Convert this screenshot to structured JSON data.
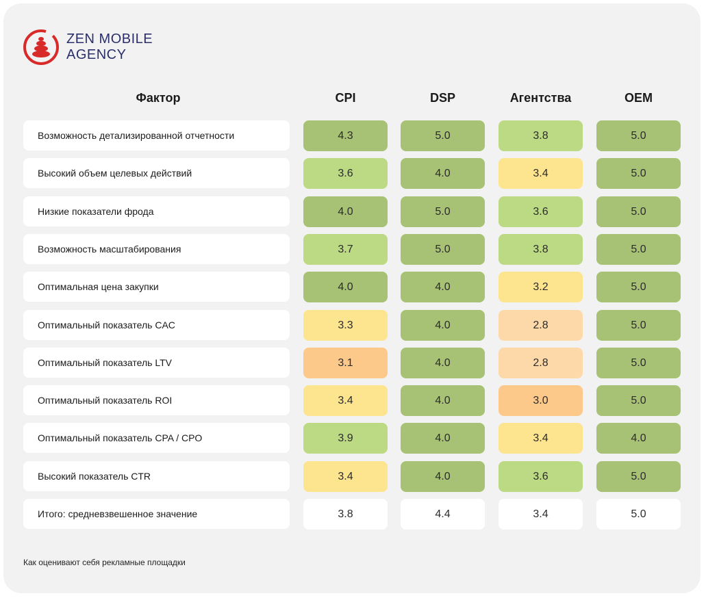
{
  "logo": {
    "line1": "ZEN MOBILE",
    "line2": "AGENCY",
    "colors": {
      "mark": "#d92a2a",
      "text": "#2a2f6b"
    }
  },
  "header": {
    "factor": "Фактор",
    "columns": [
      "CPI",
      "DSP",
      "Агентства",
      "OEM"
    ]
  },
  "colors": {
    "dark_green": "#a7c274",
    "light_green": "#bcd984",
    "yellow": "#fde48f",
    "light_orange": "#fdd8a8",
    "orange": "#fcc98b",
    "white": "#ffffff"
  },
  "chart_data": {
    "type": "table",
    "columns": [
      "CPI",
      "DSP",
      "Агентства",
      "OEM"
    ],
    "rows": [
      {
        "label": "Возможность детализированной отчетности",
        "values": [
          "4.3",
          "5.0",
          "3.8",
          "5.0"
        ]
      },
      {
        "label": "Высокий объем целевых действий",
        "values": [
          "3.6",
          "4.0",
          "3.4",
          "5.0"
        ]
      },
      {
        "label": "Низкие показатели фрода",
        "values": [
          "4.0",
          "5.0",
          "3.6",
          "5.0"
        ]
      },
      {
        "label": "Возможность масштабирования",
        "values": [
          "3.7",
          "5.0",
          "3.8",
          "5.0"
        ]
      },
      {
        "label": "Оптимальная цена закупки",
        "values": [
          "4.0",
          "4.0",
          "3.2",
          "5.0"
        ]
      },
      {
        "label": "Оптимальный показатель CAC",
        "values": [
          "3.3",
          "4.0",
          "2.8",
          "5.0"
        ]
      },
      {
        "label": "Оптимальный показатель LTV",
        "values": [
          "3.1",
          "4.0",
          "2.8",
          "5.0"
        ]
      },
      {
        "label": "Оптимальный показатель ROI",
        "values": [
          "3.4",
          "4.0",
          "3.0",
          "5.0"
        ]
      },
      {
        "label": "Оптимальный показатель CPA / CPO",
        "values": [
          "3.9",
          "4.0",
          "3.4",
          "4.0"
        ]
      },
      {
        "label": "Высокий показатель CTR",
        "values": [
          "3.4",
          "4.0",
          "3.6",
          "5.0"
        ]
      }
    ],
    "total": {
      "label": "Итого: средневзвешенное значение",
      "values": [
        "3.8",
        "4.4",
        "3.4",
        "5.0"
      ]
    }
  },
  "footnote": "Как оценивают себя рекламные площадки"
}
